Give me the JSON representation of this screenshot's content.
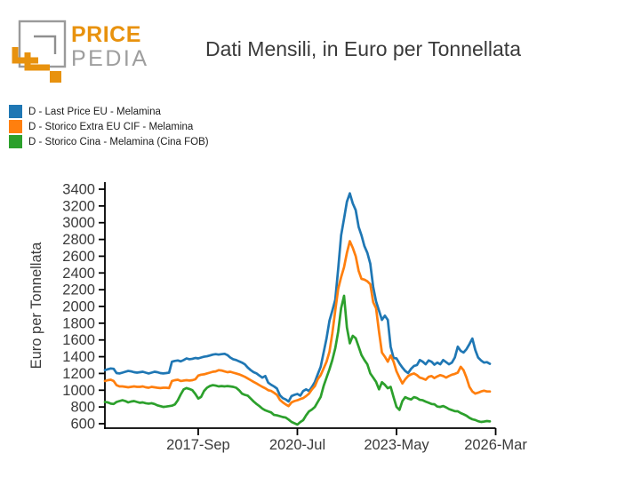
{
  "logo": {
    "brand_top": "PRICE",
    "brand_bottom": "PEDIA",
    "orange": "#E8920E",
    "gray": "#9E9E9E"
  },
  "title": "Dati Mensili, in Euro per Tonnellata",
  "legend": {
    "items": [
      {
        "label": "D - Last Price EU - Melamina",
        "color": "#1f77b4"
      },
      {
        "label": "D - Storico Extra EU CIF - Melamina",
        "color": "#ff7f0e"
      },
      {
        "label": "D - Storico Cina - Melamina (Cina FOB)",
        "color": "#2ca02c"
      }
    ]
  },
  "chart_data": {
    "type": "line",
    "title": "Dati Mensili, in Euro per Tonnellata",
    "xlabel": "",
    "ylabel": "Euro per Tonnellata",
    "frequency": "monthly",
    "x_start_month": "2015-01",
    "x_end_month": "2026-01",
    "xlim_months": [
      0,
      134
    ],
    "ylim": [
      600,
      3400
    ],
    "grid": false,
    "legend_position": "top-left-above-plot",
    "axis_color": "#000000",
    "tick_label_color": "#3b3b3b",
    "y_ticks": [
      600,
      800,
      1000,
      1200,
      1400,
      1600,
      1800,
      2000,
      2200,
      2400,
      2600,
      2800,
      3000,
      3200,
      3400
    ],
    "x_ticks": [
      {
        "label": "2017-Sep",
        "month_index": 32
      },
      {
        "label": "2020-Jul",
        "month_index": 66
      },
      {
        "label": "2023-May",
        "month_index": 100
      },
      {
        "label": "2026-Mar",
        "month_index": 134
      }
    ],
    "series": [
      {
        "name": "D - Last Price EU - Melamina",
        "color": "#1f77b4",
        "values": [
          1240,
          1250,
          1260,
          1255,
          1205,
          1200,
          1210,
          1220,
          1230,
          1225,
          1215,
          1210,
          1215,
          1220,
          1210,
          1200,
          1210,
          1220,
          1215,
          1205,
          1200,
          1205,
          1210,
          1340,
          1350,
          1355,
          1345,
          1360,
          1380,
          1370,
          1375,
          1385,
          1380,
          1390,
          1400,
          1405,
          1415,
          1425,
          1430,
          1425,
          1430,
          1435,
          1420,
          1390,
          1370,
          1360,
          1345,
          1330,
          1310,
          1270,
          1240,
          1215,
          1200,
          1175,
          1150,
          1170,
          1090,
          1065,
          1045,
          1020,
          940,
          905,
          890,
          865,
          930,
          945,
          955,
          935,
          990,
          1010,
          990,
          1040,
          1100,
          1190,
          1280,
          1450,
          1620,
          1830,
          1950,
          2080,
          2450,
          2850,
          3050,
          3250,
          3350,
          3230,
          3150,
          2950,
          2850,
          2720,
          2640,
          2510,
          2230,
          2060,
          1950,
          1840,
          1890,
          1840,
          1520,
          1385,
          1380,
          1320,
          1270,
          1230,
          1205,
          1255,
          1290,
          1300,
          1360,
          1340,
          1310,
          1355,
          1340,
          1305,
          1330,
          1310,
          1360,
          1335,
          1310,
          1330,
          1390,
          1520,
          1470,
          1450,
          1490,
          1550,
          1617,
          1480,
          1390,
          1355,
          1330,
          1335,
          1315
        ]
      },
      {
        "name": "D - Storico Extra EU CIF - Melamina",
        "color": "#ff7f0e",
        "values": [
          1110,
          1120,
          1125,
          1110,
          1060,
          1045,
          1045,
          1040,
          1035,
          1040,
          1045,
          1040,
          1040,
          1045,
          1035,
          1030,
          1040,
          1035,
          1030,
          1025,
          1030,
          1030,
          1025,
          1110,
          1120,
          1125,
          1110,
          1115,
          1120,
          1115,
          1120,
          1130,
          1175,
          1185,
          1190,
          1200,
          1210,
          1220,
          1225,
          1240,
          1235,
          1225,
          1215,
          1220,
          1210,
          1200,
          1190,
          1175,
          1160,
          1140,
          1120,
          1100,
          1080,
          1060,
          1040,
          1023,
          1000,
          991,
          970,
          945,
          885,
          855,
          830,
          810,
          855,
          870,
          880,
          895,
          905,
          930,
          960,
          1010,
          1050,
          1130,
          1180,
          1260,
          1340,
          1460,
          1680,
          1950,
          2210,
          2350,
          2470,
          2640,
          2780,
          2700,
          2600,
          2425,
          2330,
          2320,
          2300,
          2265,
          2050,
          1978,
          1700,
          1450,
          1400,
          1340,
          1415,
          1340,
          1225,
          1150,
          1080,
          1130,
          1170,
          1190,
          1200,
          1180,
          1150,
          1140,
          1125,
          1160,
          1170,
          1145,
          1165,
          1180,
          1170,
          1150,
          1170,
          1185,
          1195,
          1210,
          1280,
          1240,
          1150,
          1040,
          985,
          960,
          970,
          985,
          995,
          985,
          985
        ]
      },
      {
        "name": "D - Storico Cina - Melamina (Cina FOB)",
        "color": "#2ca02c",
        "values": [
          860,
          855,
          840,
          835,
          860,
          870,
          880,
          870,
          855,
          865,
          870,
          860,
          850,
          855,
          845,
          840,
          845,
          835,
          820,
          810,
          800,
          805,
          810,
          815,
          830,
          880,
          950,
          1010,
          1025,
          1015,
          1000,
          955,
          900,
          920,
          990,
          1030,
          1050,
          1060,
          1055,
          1045,
          1050,
          1045,
          1050,
          1045,
          1040,
          1030,
          1000,
          960,
          945,
          935,
          900,
          865,
          835,
          810,
          780,
          760,
          747,
          735,
          705,
          700,
          690,
          680,
          673,
          650,
          621,
          605,
          589,
          620,
          642,
          700,
          747,
          770,
          800,
          860,
          920,
          1050,
          1150,
          1250,
          1360,
          1500,
          1700,
          1980,
          2127,
          1750,
          1560,
          1650,
          1620,
          1520,
          1420,
          1360,
          1310,
          1200,
          1150,
          1100,
          1010,
          1095,
          1065,
          1023,
          1040,
          917,
          800,
          765,
          870,
          917,
          900,
          890,
          917,
          906,
          885,
          880,
          864,
          850,
          835,
          832,
          805,
          800,
          811,
          795,
          775,
          762,
          750,
          748,
          727,
          712,
          695,
          670,
          653,
          645,
          630,
          621,
          625,
          632,
          628
        ]
      }
    ]
  }
}
